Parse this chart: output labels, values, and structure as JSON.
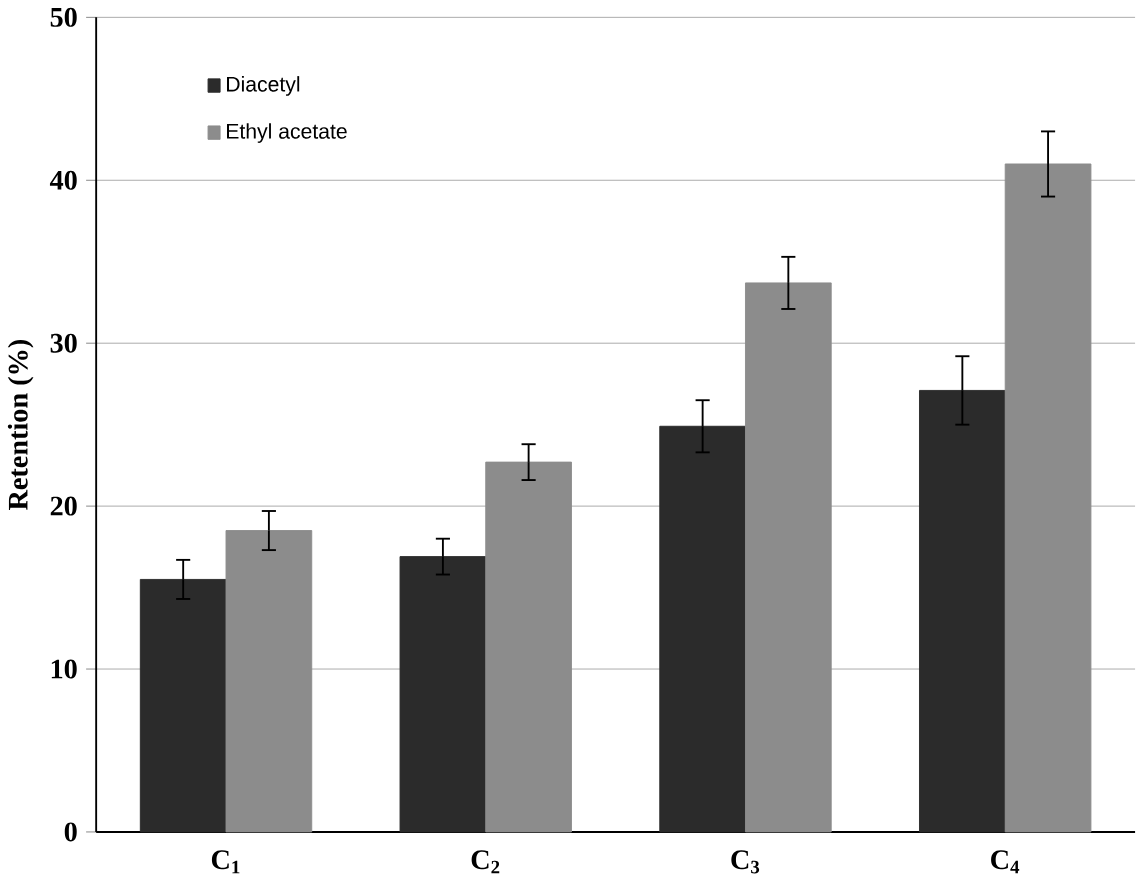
{
  "chart_data": {
    "type": "bar",
    "ylabel": "Retention (%)",
    "categories": [
      "C$_{1}$",
      "C$_{2}$",
      "C$_{3}$",
      "C$_{4}$"
    ],
    "series": [
      {
        "name": "Diacetyl",
        "color": "#2b2b2b",
        "values": [
          15.5,
          16.9,
          24.9,
          27.1
        ],
        "errors": [
          1.2,
          1.1,
          1.6,
          2.1
        ]
      },
      {
        "name": "Ethyl acetate",
        "color": "#8c8c8c",
        "values": [
          18.5,
          22.7,
          33.7,
          41.0
        ],
        "errors": [
          1.2,
          1.1,
          1.6,
          2.0
        ]
      }
    ],
    "ylim": [
      0,
      50
    ],
    "yticks": [
      0,
      10,
      20,
      30,
      40,
      50
    ],
    "grid": "y",
    "legend": "top left"
  }
}
